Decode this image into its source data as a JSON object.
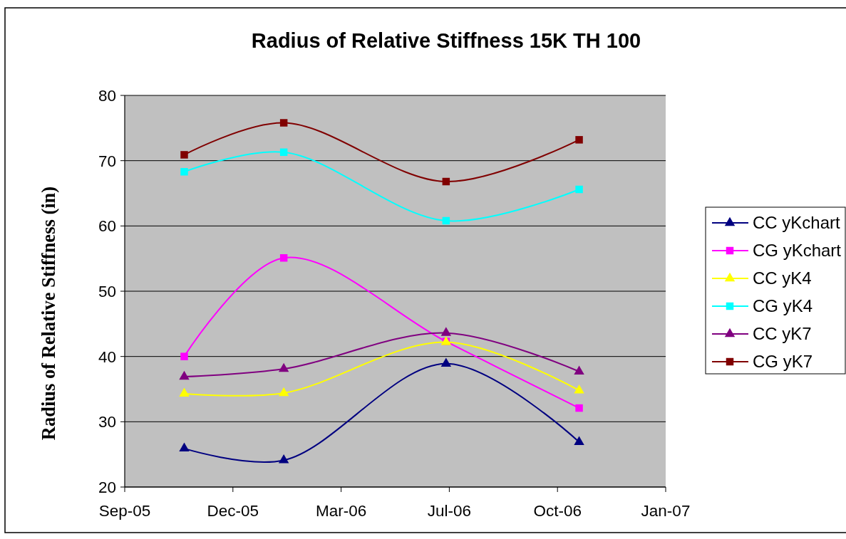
{
  "chart_data": {
    "type": "line",
    "title": "Radius of Relative Stiffness 15K TH 100",
    "ylabel": "Radius of Relative Stiffness (in)",
    "x": [
      "2005-11-01",
      "2006-02-01",
      "2006-07-01",
      "2006-11-01"
    ],
    "xlim": [
      "2005-09-07",
      "2007-01-20"
    ],
    "xticks": [
      {
        "value": "2005-09-07",
        "label": "Sep-05"
      },
      {
        "value": "2005-12-16",
        "label": "Dec-05"
      },
      {
        "value": "2006-03-26",
        "label": "Mar-06"
      },
      {
        "value": "2006-07-04",
        "label": "Jul-06"
      },
      {
        "value": "2006-10-12",
        "label": "Oct-06"
      },
      {
        "value": "2007-01-20",
        "label": "Jan-07"
      }
    ],
    "ylim": [
      20,
      80
    ],
    "yticks": [
      20,
      30,
      40,
      50,
      60,
      70,
      80
    ],
    "grid": "y",
    "legend": "right",
    "series": [
      {
        "name": "CC yKchart",
        "color": "#000080",
        "marker": "triangle",
        "values": [
          25.9,
          24.1,
          38.9,
          26.9
        ]
      },
      {
        "name": "CG yKchart",
        "color": "#ff00ff",
        "marker": "square",
        "values": [
          40.0,
          55.1,
          42.3,
          32.1
        ]
      },
      {
        "name": "CC yK4",
        "color": "#ffff00",
        "marker": "triangle",
        "values": [
          34.3,
          34.4,
          42.2,
          34.8
        ]
      },
      {
        "name": "CG yK4",
        "color": "#00ffff",
        "marker": "square",
        "values": [
          68.3,
          71.3,
          60.8,
          65.6
        ]
      },
      {
        "name": "CC yK7",
        "color": "#800080",
        "marker": "triangle",
        "values": [
          36.9,
          38.1,
          43.6,
          37.7
        ]
      },
      {
        "name": "CG yK7",
        "color": "#800000",
        "marker": "square",
        "values": [
          70.9,
          75.8,
          66.8,
          73.2
        ]
      }
    ]
  }
}
